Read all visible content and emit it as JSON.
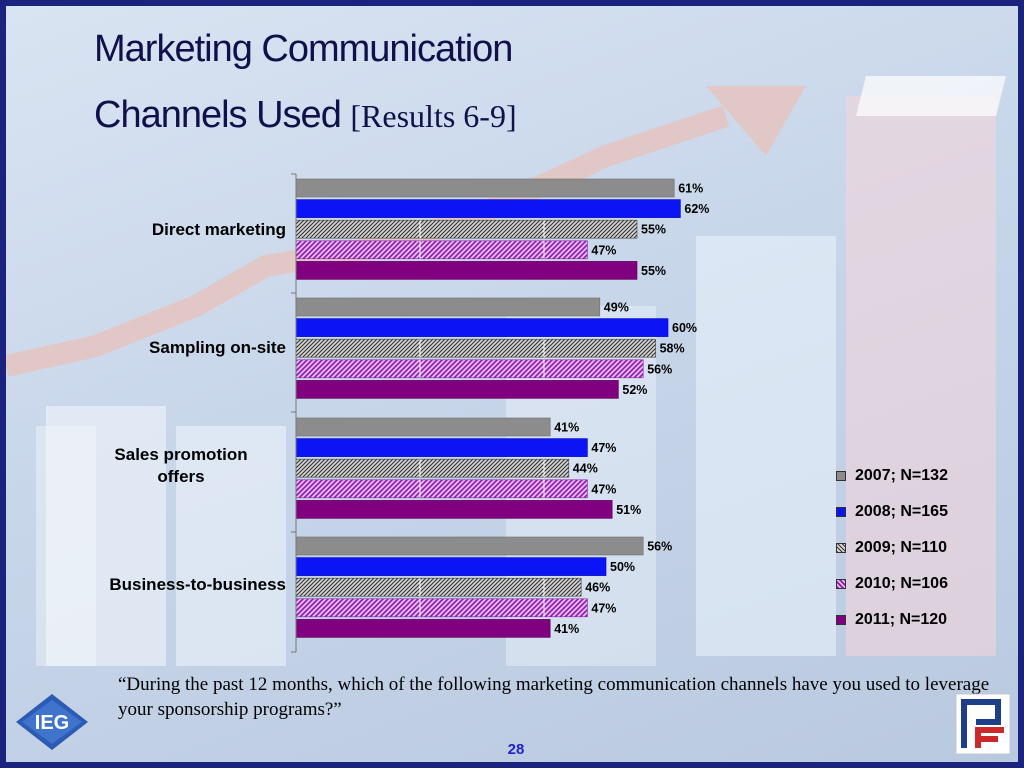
{
  "title": {
    "line1": "Marketing Communication",
    "line2": "Channels Used",
    "suffix": "[Results 6-9]"
  },
  "colors": {
    "2007": "#8c8c8c",
    "2008": "#0a14f5",
    "2009": "#707070",
    "2010": "#b040c8",
    "2011": "#800080"
  },
  "chart_data": {
    "type": "bar",
    "orientation": "horizontal",
    "categories": [
      "Direct marketing",
      "Sampling on-site",
      "Sales promotion offers",
      "Business-to-business"
    ],
    "series": [
      {
        "name": "2007; N=132",
        "pattern": "solid",
        "values": [
          61,
          49,
          41,
          56
        ]
      },
      {
        "name": "2008; N=165",
        "pattern": "solid",
        "values": [
          62,
          60,
          47,
          50
        ]
      },
      {
        "name": "2009; N=110",
        "pattern": "diagonal-dense",
        "values": [
          55,
          58,
          44,
          46
        ]
      },
      {
        "name": "2010; N=106",
        "pattern": "diagonal",
        "values": [
          47,
          56,
          47,
          47
        ]
      },
      {
        "name": "2011; N=120",
        "pattern": "solid",
        "values": [
          55,
          52,
          51,
          41
        ]
      }
    ],
    "value_suffix": "%",
    "xlim": [
      0,
      100
    ],
    "legend_position": "right"
  },
  "question": "“During the past 12 months, which of the following marketing communication channels have you used to leverage your sponsorship programs?”",
  "page_number": "28",
  "logos": {
    "left": "IEG",
    "right": "PF"
  }
}
